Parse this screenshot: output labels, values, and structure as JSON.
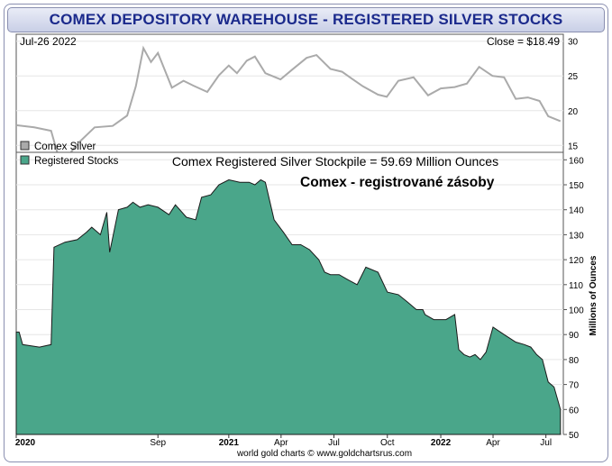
{
  "header": {
    "title": "COMEX DEPOSITORY WAREHOUSE - REGISTERED SILVER STOCKS"
  },
  "colors": {
    "stocks_fill": "#4aa68a",
    "silver_line": "#aaaaaa",
    "title_color": "#1b2a8c"
  },
  "chart_data": [
    {
      "type": "line",
      "panel": "top",
      "date_label": "Jul-26  2022",
      "close_label": "Close = $18.49",
      "legend": [
        "Comex Silver"
      ],
      "yticks": [
        15,
        20,
        25,
        30
      ],
      "ylim": [
        14,
        31
      ],
      "series": [
        {
          "name": "Comex Silver",
          "x": [
            "2020-01-01",
            "2020-02-01",
            "2020-03-01",
            "2020-03-18",
            "2020-04-15",
            "2020-05-15",
            "2020-06-15",
            "2020-07-10",
            "2020-07-25",
            "2020-08-07",
            "2020-08-20",
            "2020-09-01",
            "2020-09-25",
            "2020-10-15",
            "2020-11-01",
            "2020-11-25",
            "2020-12-15",
            "2021-01-01",
            "2021-01-15",
            "2021-02-01",
            "2021-02-15",
            "2021-03-05",
            "2021-03-31",
            "2021-04-20",
            "2021-05-15",
            "2021-06-01",
            "2021-06-25",
            "2021-07-15",
            "2021-08-01",
            "2021-08-20",
            "2021-09-15",
            "2021-09-30",
            "2021-10-20",
            "2021-11-15",
            "2021-12-10",
            "2022-01-01",
            "2022-01-25",
            "2022-02-15",
            "2022-03-08",
            "2022-03-31",
            "2022-04-20",
            "2022-05-10",
            "2022-05-31",
            "2022-06-20",
            "2022-07-05",
            "2022-07-26"
          ],
          "y": [
            17.9,
            17.6,
            17.1,
            12.1,
            15.2,
            17.6,
            17.8,
            19.3,
            23.5,
            29.0,
            27.0,
            28.3,
            23.3,
            24.3,
            23.6,
            22.7,
            25.1,
            26.5,
            25.4,
            27.2,
            27.8,
            25.4,
            24.5,
            25.9,
            27.6,
            28.0,
            26.0,
            25.6,
            24.6,
            23.5,
            22.3,
            22.0,
            24.3,
            24.8,
            22.2,
            23.2,
            23.4,
            23.9,
            26.3,
            25.0,
            24.8,
            21.7,
            21.9,
            21.4,
            19.2,
            18.49
          ]
        }
      ]
    },
    {
      "type": "area",
      "panel": "bottom",
      "title": "Comex Registered Silver Stockpile = 59.69 Million Ounces",
      "annotation": "Comex - registrované zásoby",
      "legend": [
        "Registered Stocks"
      ],
      "ylabel": "Millions of Ounces",
      "yticks": [
        50,
        60,
        70,
        80,
        90,
        100,
        110,
        120,
        130,
        140,
        150,
        160
      ],
      "ylim": [
        50,
        163
      ],
      "xtick_labels": [
        {
          "label": "2020",
          "date": "2020-01-01"
        },
        {
          "label": "Sep",
          "date": "2020-09-01"
        },
        {
          "label": "2021",
          "date": "2021-01-01"
        },
        {
          "label": "Apr",
          "date": "2021-04-01"
        },
        {
          "label": "Jul",
          "date": "2021-07-01"
        },
        {
          "label": "Oct",
          "date": "2021-10-01"
        },
        {
          "label": "2022",
          "date": "2022-01-01"
        },
        {
          "label": "Apr",
          "date": "2022-04-01"
        },
        {
          "label": "Jul",
          "date": "2022-07-01"
        }
      ],
      "series": [
        {
          "name": "Registered Stocks",
          "x": [
            "2020-01-01",
            "2020-01-06",
            "2020-01-12",
            "2020-02-10",
            "2020-03-01",
            "2020-03-06",
            "2020-03-25",
            "2020-04-15",
            "2020-05-01",
            "2020-05-10",
            "2020-05-25",
            "2020-06-05",
            "2020-06-10",
            "2020-06-25",
            "2020-07-10",
            "2020-07-20",
            "2020-08-01",
            "2020-08-15",
            "2020-09-01",
            "2020-09-20",
            "2020-10-01",
            "2020-10-20",
            "2020-11-05",
            "2020-11-15",
            "2020-12-01",
            "2020-12-15",
            "2021-01-01",
            "2021-01-20",
            "2021-02-05",
            "2021-02-15",
            "2021-02-25",
            "2021-03-05",
            "2021-03-20",
            "2021-04-05",
            "2021-04-20",
            "2021-05-05",
            "2021-05-20",
            "2021-06-05",
            "2021-06-15",
            "2021-06-25",
            "2021-07-10",
            "2021-07-25",
            "2021-08-10",
            "2021-08-25",
            "2021-09-15",
            "2021-10-01",
            "2021-10-20",
            "2021-11-05",
            "2021-11-20",
            "2021-12-01",
            "2021-12-05",
            "2021-12-20",
            "2022-01-10",
            "2022-01-25",
            "2022-02-01",
            "2022-02-10",
            "2022-02-20",
            "2022-03-01",
            "2022-03-10",
            "2022-03-20",
            "2022-04-01",
            "2022-04-20",
            "2022-05-10",
            "2022-05-25",
            "2022-06-05",
            "2022-06-15",
            "2022-06-25",
            "2022-07-05",
            "2022-07-15",
            "2022-07-26"
          ],
          "y": [
            91,
            91,
            86,
            85,
            86,
            125,
            127,
            128,
            131,
            133,
            130,
            139,
            123,
            140,
            141,
            143,
            141,
            142,
            141,
            138,
            142,
            137,
            136,
            145,
            146,
            150,
            152,
            151,
            151,
            150,
            152,
            151,
            136,
            131,
            126,
            126,
            124,
            120,
            115,
            114,
            114,
            112,
            110,
            117,
            115,
            107,
            106,
            103,
            100,
            100,
            98,
            96,
            96,
            98,
            84,
            82,
            81,
            82,
            80,
            83,
            93,
            90,
            87,
            86,
            85,
            82,
            80,
            71,
            69,
            60
          ]
        }
      ]
    }
  ],
  "footer": {
    "credit": "world gold charts ©  www.goldchartsrus.com"
  }
}
